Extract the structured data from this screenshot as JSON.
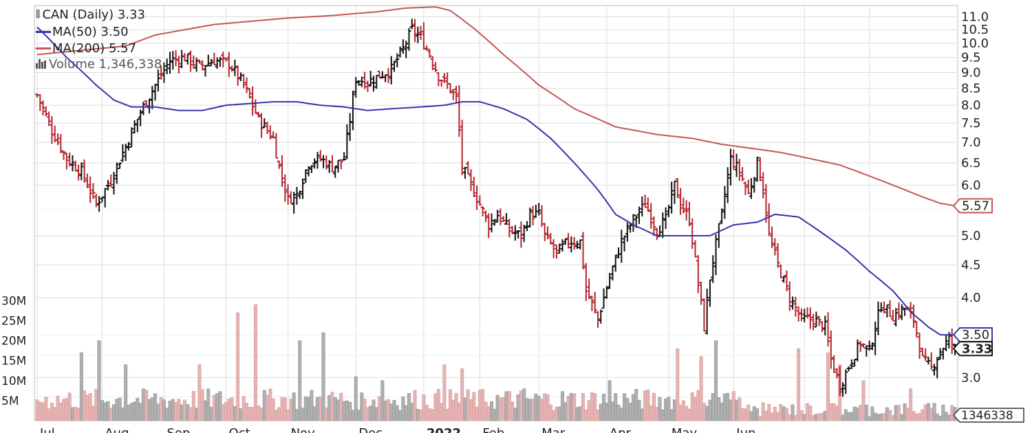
{
  "chart_data": {
    "type": "ohlc",
    "title": "CAN (Daily) 3.33",
    "legend": {
      "symbol_label": "CAN (Daily) 3.33",
      "ma50_label": "MA(50) 3.50",
      "ma200_label": "MA(200) 5.57",
      "volume_label": "Volume 1,346,338"
    },
    "colors": {
      "up": "#111111",
      "down": "#b5242c",
      "ma50": "#3333aa",
      "ma200": "#c45555",
      "volume_up": "#b0b0b0",
      "volume_down": "#e6b3b3",
      "grid": "#dddddd"
    },
    "price_axis": {
      "scale": "log",
      "ticks": [
        "11.0",
        "10.5",
        "10.0",
        "9.5",
        "9.0",
        "8.5",
        "8.0",
        "7.5",
        "7.0",
        "6.5",
        "6.0",
        "5.0",
        "4.5",
        "4.0",
        "3.0"
      ],
      "range": [
        2.7,
        11.4
      ]
    },
    "volume_axis": {
      "ticks": [
        "30M",
        "25M",
        "20M",
        "15M",
        "10M",
        "5M"
      ],
      "range": [
        0,
        30000000
      ]
    },
    "x_labels": [
      "Jul",
      "Aug",
      "Sep",
      "Oct",
      "Nov",
      "Dec",
      "2022",
      "Feb",
      "Mar",
      "Apr",
      "May",
      "Jun"
    ],
    "price_keypoints": [
      [
        0,
        8.3
      ],
      [
        5,
        7.3
      ],
      [
        10,
        6.6
      ],
      [
        15,
        6.3
      ],
      [
        20,
        5.6
      ],
      [
        25,
        6.1
      ],
      [
        30,
        6.9
      ],
      [
        35,
        7.8
      ],
      [
        40,
        8.6
      ],
      [
        45,
        9.4
      ],
      [
        50,
        9.5
      ],
      [
        55,
        9.2
      ],
      [
        60,
        9.4
      ],
      [
        65,
        9.3
      ],
      [
        70,
        8.6
      ],
      [
        75,
        7.6
      ],
      [
        78,
        7.3
      ],
      [
        80,
        7.1
      ],
      [
        82,
        6.4
      ],
      [
        85,
        5.7
      ],
      [
        88,
        5.8
      ],
      [
        92,
        6.5
      ],
      [
        96,
        6.6
      ],
      [
        100,
        6.4
      ],
      [
        104,
        6.6
      ],
      [
        106,
        7.6
      ],
      [
        108,
        8.8
      ],
      [
        112,
        8.7
      ],
      [
        116,
        8.9
      ],
      [
        120,
        9.1
      ],
      [
        124,
        9.8
      ],
      [
        127,
        10.5
      ],
      [
        130,
        10.2
      ],
      [
        133,
        9.6
      ],
      [
        136,
        8.9
      ],
      [
        139,
        8.6
      ],
      [
        142,
        8.2
      ],
      [
        144,
        6.4
      ],
      [
        147,
        6.0
      ],
      [
        150,
        5.6
      ],
      [
        153,
        5.2
      ],
      [
        156,
        5.4
      ],
      [
        160,
        5.1
      ],
      [
        164,
        5.0
      ],
      [
        167,
        5.4
      ],
      [
        170,
        5.4
      ],
      [
        172,
        5.0
      ],
      [
        176,
        4.7
      ],
      [
        180,
        4.9
      ],
      [
        184,
        4.9
      ],
      [
        186,
        4.1
      ],
      [
        190,
        3.7
      ],
      [
        194,
        4.3
      ],
      [
        198,
        4.9
      ],
      [
        202,
        5.3
      ],
      [
        206,
        5.6
      ],
      [
        210,
        5.1
      ],
      [
        213,
        5.3
      ],
      [
        216,
        6.0
      ],
      [
        218,
        5.6
      ],
      [
        221,
        5.3
      ],
      [
        224,
        4.2
      ],
      [
        226,
        3.6
      ],
      [
        228,
        4.3
      ],
      [
        232,
        5.4
      ],
      [
        235,
        6.6
      ],
      [
        238,
        6.3
      ],
      [
        241,
        5.8
      ],
      [
        244,
        6.5
      ],
      [
        246,
        5.9
      ],
      [
        248,
        5.0
      ],
      [
        251,
        4.5
      ],
      [
        255,
        4.0
      ],
      [
        259,
        3.7
      ],
      [
        263,
        3.7
      ],
      [
        267,
        3.6
      ],
      [
        269,
        3.2
      ],
      [
        272,
        2.9
      ],
      [
        276,
        3.2
      ],
      [
        279,
        3.4
      ],
      [
        282,
        3.3
      ],
      [
        286,
        3.9
      ],
      [
        290,
        3.75
      ],
      [
        294,
        3.85
      ],
      [
        297,
        3.7
      ],
      [
        300,
        3.2
      ],
      [
        303,
        3.1
      ],
      [
        306,
        3.3
      ],
      [
        309,
        3.45
      ],
      [
        311,
        3.33
      ]
    ],
    "ma50_keypoints": [
      [
        0,
        10.6
      ],
      [
        10,
        9.5
      ],
      [
        20,
        8.6
      ],
      [
        26,
        8.15
      ],
      [
        32,
        7.95
      ],
      [
        40,
        7.95
      ],
      [
        48,
        7.85
      ],
      [
        56,
        7.85
      ],
      [
        64,
        8.0
      ],
      [
        72,
        8.05
      ],
      [
        80,
        8.1
      ],
      [
        88,
        8.1
      ],
      [
        96,
        8.0
      ],
      [
        104,
        7.95
      ],
      [
        112,
        7.85
      ],
      [
        120,
        7.9
      ],
      [
        130,
        7.95
      ],
      [
        138,
        8.0
      ],
      [
        144,
        8.1
      ],
      [
        150,
        8.1
      ],
      [
        158,
        7.9
      ],
      [
        166,
        7.6
      ],
      [
        174,
        7.1
      ],
      [
        182,
        6.5
      ],
      [
        190,
        5.9
      ],
      [
        196,
        5.4
      ],
      [
        202,
        5.2
      ],
      [
        210,
        5.0
      ],
      [
        220,
        5.0
      ],
      [
        228,
        5.0
      ],
      [
        236,
        5.2
      ],
      [
        244,
        5.25
      ],
      [
        250,
        5.4
      ],
      [
        258,
        5.35
      ],
      [
        266,
        5.05
      ],
      [
        274,
        4.75
      ],
      [
        282,
        4.4
      ],
      [
        290,
        4.1
      ],
      [
        296,
        3.8
      ],
      [
        302,
        3.6
      ],
      [
        306,
        3.5
      ],
      [
        311,
        3.5
      ]
    ],
    "ma200_keypoints": [
      [
        0,
        9.6
      ],
      [
        15,
        9.75
      ],
      [
        30,
        9.9
      ],
      [
        40,
        10.3
      ],
      [
        50,
        10.5
      ],
      [
        60,
        10.7
      ],
      [
        70,
        10.8
      ],
      [
        85,
        10.95
      ],
      [
        100,
        11.05
      ],
      [
        115,
        11.2
      ],
      [
        125,
        11.35
      ],
      [
        135,
        11.4
      ],
      [
        140,
        11.25
      ],
      [
        148,
        10.55
      ],
      [
        158,
        9.6
      ],
      [
        170,
        8.6
      ],
      [
        182,
        7.9
      ],
      [
        196,
        7.4
      ],
      [
        210,
        7.2
      ],
      [
        222,
        7.1
      ],
      [
        232,
        6.95
      ],
      [
        242,
        6.85
      ],
      [
        252,
        6.75
      ],
      [
        262,
        6.6
      ],
      [
        272,
        6.45
      ],
      [
        282,
        6.2
      ],
      [
        292,
        5.95
      ],
      [
        300,
        5.75
      ],
      [
        306,
        5.62
      ],
      [
        311,
        5.57
      ]
    ],
    "volume_spikes": [
      [
        15,
        17
      ],
      [
        21,
        20
      ],
      [
        30,
        14
      ],
      [
        55,
        14
      ],
      [
        68,
        27
      ],
      [
        74,
        29
      ],
      [
        89,
        20
      ],
      [
        97,
        22
      ],
      [
        108,
        11
      ],
      [
        117,
        10
      ],
      [
        138,
        14
      ],
      [
        144,
        13
      ],
      [
        165,
        8
      ],
      [
        194,
        10
      ],
      [
        217,
        18
      ],
      [
        225,
        16
      ],
      [
        230,
        20
      ],
      [
        258,
        18
      ],
      [
        268,
        17
      ],
      [
        272,
        14
      ],
      [
        280,
        10
      ],
      [
        296,
        8
      ]
    ],
    "price_flags": [
      {
        "label": "5.57",
        "value": 5.57
      },
      {
        "label": "3.50",
        "value": 3.5
      },
      {
        "label": "3.33",
        "value": 3.33
      }
    ],
    "volume_flag": {
      "label": "1346338",
      "value": 1346338
    }
  }
}
